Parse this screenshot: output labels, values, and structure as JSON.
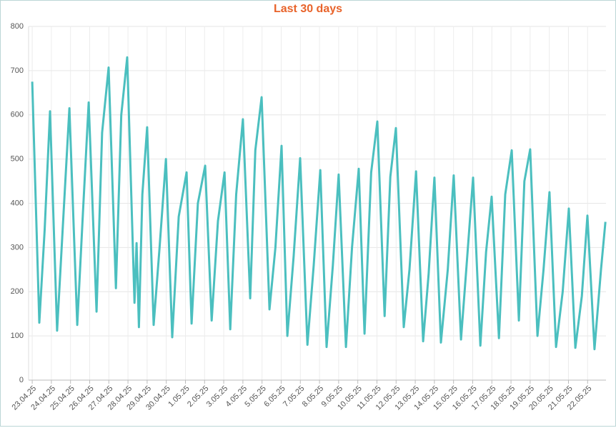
{
  "chart_data": {
    "type": "line",
    "title": "Last 30 days",
    "x": [
      0.0,
      0.37,
      0.65,
      0.93,
      1.3,
      1.6,
      1.94,
      2.35,
      2.65,
      2.95,
      3.36,
      3.65,
      3.99,
      4.37,
      4.65,
      4.96,
      5.34,
      5.45,
      5.57,
      5.75,
      6.0,
      6.34,
      6.65,
      6.98,
      7.31,
      7.65,
      8.06,
      8.32,
      8.65,
      9.03,
      9.37,
      9.7,
      10.04,
      10.34,
      10.65,
      11.0,
      11.38,
      11.65,
      11.98,
      12.39,
      12.7,
      13.02,
      13.32,
      13.65,
      13.99,
      14.37,
      14.7,
      15.04,
      15.37,
      15.7,
      16.0,
      16.38,
      16.7,
      17.05,
      17.35,
      17.7,
      18.02,
      18.4,
      18.7,
      18.99,
      19.4,
      19.7,
      20.04,
      20.41,
      20.7,
      21.0,
      21.34,
      21.7,
      22.01,
      22.39,
      22.7,
      23.02,
      23.4,
      23.7,
      23.99,
      24.37,
      24.7,
      25.04,
      25.41,
      25.7,
      26.0,
      26.38,
      26.7,
      27.01,
      27.35,
      27.7,
      28.02,
      28.36,
      28.7,
      28.99,
      29.36,
      29.7,
      29.93
    ],
    "series": [
      {
        "color": "#4bbfbf",
        "values": [
          675,
          130,
          340,
          608,
          112,
          350,
          615,
          125,
          380,
          628,
          155,
          560,
          707,
          208,
          600,
          730,
          175,
          310,
          120,
          420,
          572,
          125,
          300,
          500,
          97,
          370,
          470,
          128,
          400,
          485,
          135,
          360,
          470,
          115,
          420,
          590,
          185,
          520,
          640,
          160,
          300,
          530,
          100,
          280,
          502,
          80,
          260,
          475,
          75,
          260,
          465,
          75,
          300,
          478,
          105,
          470,
          585,
          145,
          460,
          570,
          120,
          250,
          472,
          88,
          240,
          458,
          85,
          250,
          463,
          92,
          270,
          458,
          78,
          290,
          415,
          95,
          420,
          520,
          135,
          450,
          522,
          100,
          250,
          425,
          75,
          200,
          388,
          73,
          190,
          372,
          70,
          250,
          358
        ]
      }
    ],
    "xlim": [
      -0.19,
      29.96
    ],
    "xticks": [
      {
        "value": 0,
        "label": "23.04.25"
      },
      {
        "value": 1,
        "label": "24.04.25"
      },
      {
        "value": 2,
        "label": "25.04.25"
      },
      {
        "value": 3,
        "label": "26.04.25"
      },
      {
        "value": 4,
        "label": "27.04.25"
      },
      {
        "value": 5,
        "label": "28.04.25"
      },
      {
        "value": 6,
        "label": "29.04.25"
      },
      {
        "value": 7,
        "label": "30.04.25"
      },
      {
        "value": 8,
        "label": "1.05.25"
      },
      {
        "value": 9,
        "label": "2.05.25"
      },
      {
        "value": 10,
        "label": "3.05.25"
      },
      {
        "value": 11,
        "label": "4.05.25"
      },
      {
        "value": 12,
        "label": "5.05.25"
      },
      {
        "value": 13,
        "label": "6.05.25"
      },
      {
        "value": 14,
        "label": "7.05.25"
      },
      {
        "value": 15,
        "label": "8.05.25"
      },
      {
        "value": 16,
        "label": "9.05.25"
      },
      {
        "value": 17,
        "label": "10.05.25"
      },
      {
        "value": 18,
        "label": "11.05.25"
      },
      {
        "value": 19,
        "label": "12.05.25"
      },
      {
        "value": 20,
        "label": "13.05.25"
      },
      {
        "value": 21,
        "label": "14.05.25"
      },
      {
        "value": 22,
        "label": "15.05.25"
      },
      {
        "value": 23,
        "label": "16.05.25"
      },
      {
        "value": 24,
        "label": "17.05.25"
      },
      {
        "value": 25,
        "label": "18.05.25"
      },
      {
        "value": 26,
        "label": "19.05.25"
      },
      {
        "value": 27,
        "label": "20.05.25"
      },
      {
        "value": 28,
        "label": "21.05.25"
      },
      {
        "value": 29,
        "label": "22.05.25"
      }
    ],
    "ylim": [
      0,
      800
    ],
    "yticks": [
      0,
      100,
      200,
      300,
      400,
      500,
      600,
      700,
      800
    ],
    "grid": true
  }
}
